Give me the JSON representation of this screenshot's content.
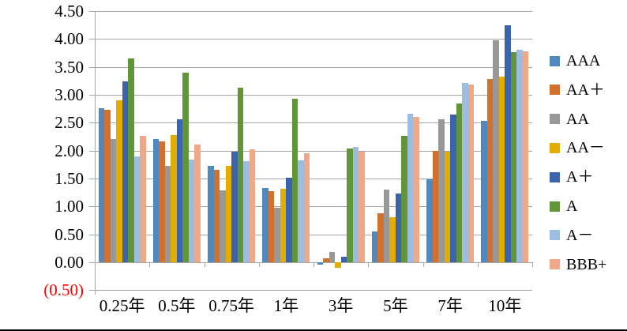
{
  "chart_data": {
    "type": "bar",
    "title": "",
    "categories": [
      "0.25年",
      "0.5年",
      "0.75年",
      "1年",
      "3年",
      "5年",
      "7年",
      "10年"
    ],
    "series": [
      {
        "name": "AAA",
        "color": "#5089BD",
        "values": [
          2.76,
          2.2,
          1.72,
          1.33,
          -0.05,
          0.55,
          1.48,
          2.53
        ]
      },
      {
        "name": "AA＋",
        "color": "#D2702E",
        "values": [
          2.73,
          2.17,
          1.66,
          1.27,
          0.07,
          0.88,
          1.99,
          3.28
        ]
      },
      {
        "name": "AA",
        "color": "#989898",
        "values": [
          2.2,
          1.72,
          1.29,
          0.97,
          0.18,
          1.3,
          2.56,
          3.97
        ]
      },
      {
        "name": "AA－",
        "color": "#E2AC00",
        "values": [
          2.9,
          2.28,
          1.73,
          1.32,
          -0.1,
          0.8,
          1.98,
          3.32
        ]
      },
      {
        "name": "A＋",
        "color": "#3C64AC",
        "values": [
          3.24,
          2.56,
          1.98,
          1.51,
          0.1,
          1.23,
          2.65,
          4.25
        ]
      },
      {
        "name": "A",
        "color": "#60953A",
        "values": [
          3.65,
          3.39,
          3.13,
          2.93,
          2.03,
          2.26,
          2.85,
          3.76
        ]
      },
      {
        "name": "A－",
        "color": "#9CBCE0",
        "values": [
          1.9,
          1.84,
          1.81,
          1.83,
          2.07,
          2.66,
          3.21,
          3.8
        ]
      },
      {
        "name": "BBB+",
        "color": "#F0A988",
        "values": [
          2.26,
          2.11,
          2.02,
          1.95,
          1.98,
          2.6,
          3.18,
          3.78
        ]
      }
    ],
    "y_axis": {
      "min": -0.5,
      "max": 4.5,
      "step": 0.5,
      "tick_labels": [
        "4.50",
        "4.00",
        "3.50",
        "3.00",
        "2.50",
        "2.00",
        "1.50",
        "1.00",
        "0.50",
        "0.00",
        "(0.50)"
      ],
      "negative_label_color": "#FF0000"
    },
    "grid": true,
    "legend_position": "right"
  },
  "styles": {
    "gridline_color": "#A6A6A6",
    "axis_color": "#A6A6A6",
    "background": "#FFFFFF",
    "bottom_border_color": "#000000"
  }
}
